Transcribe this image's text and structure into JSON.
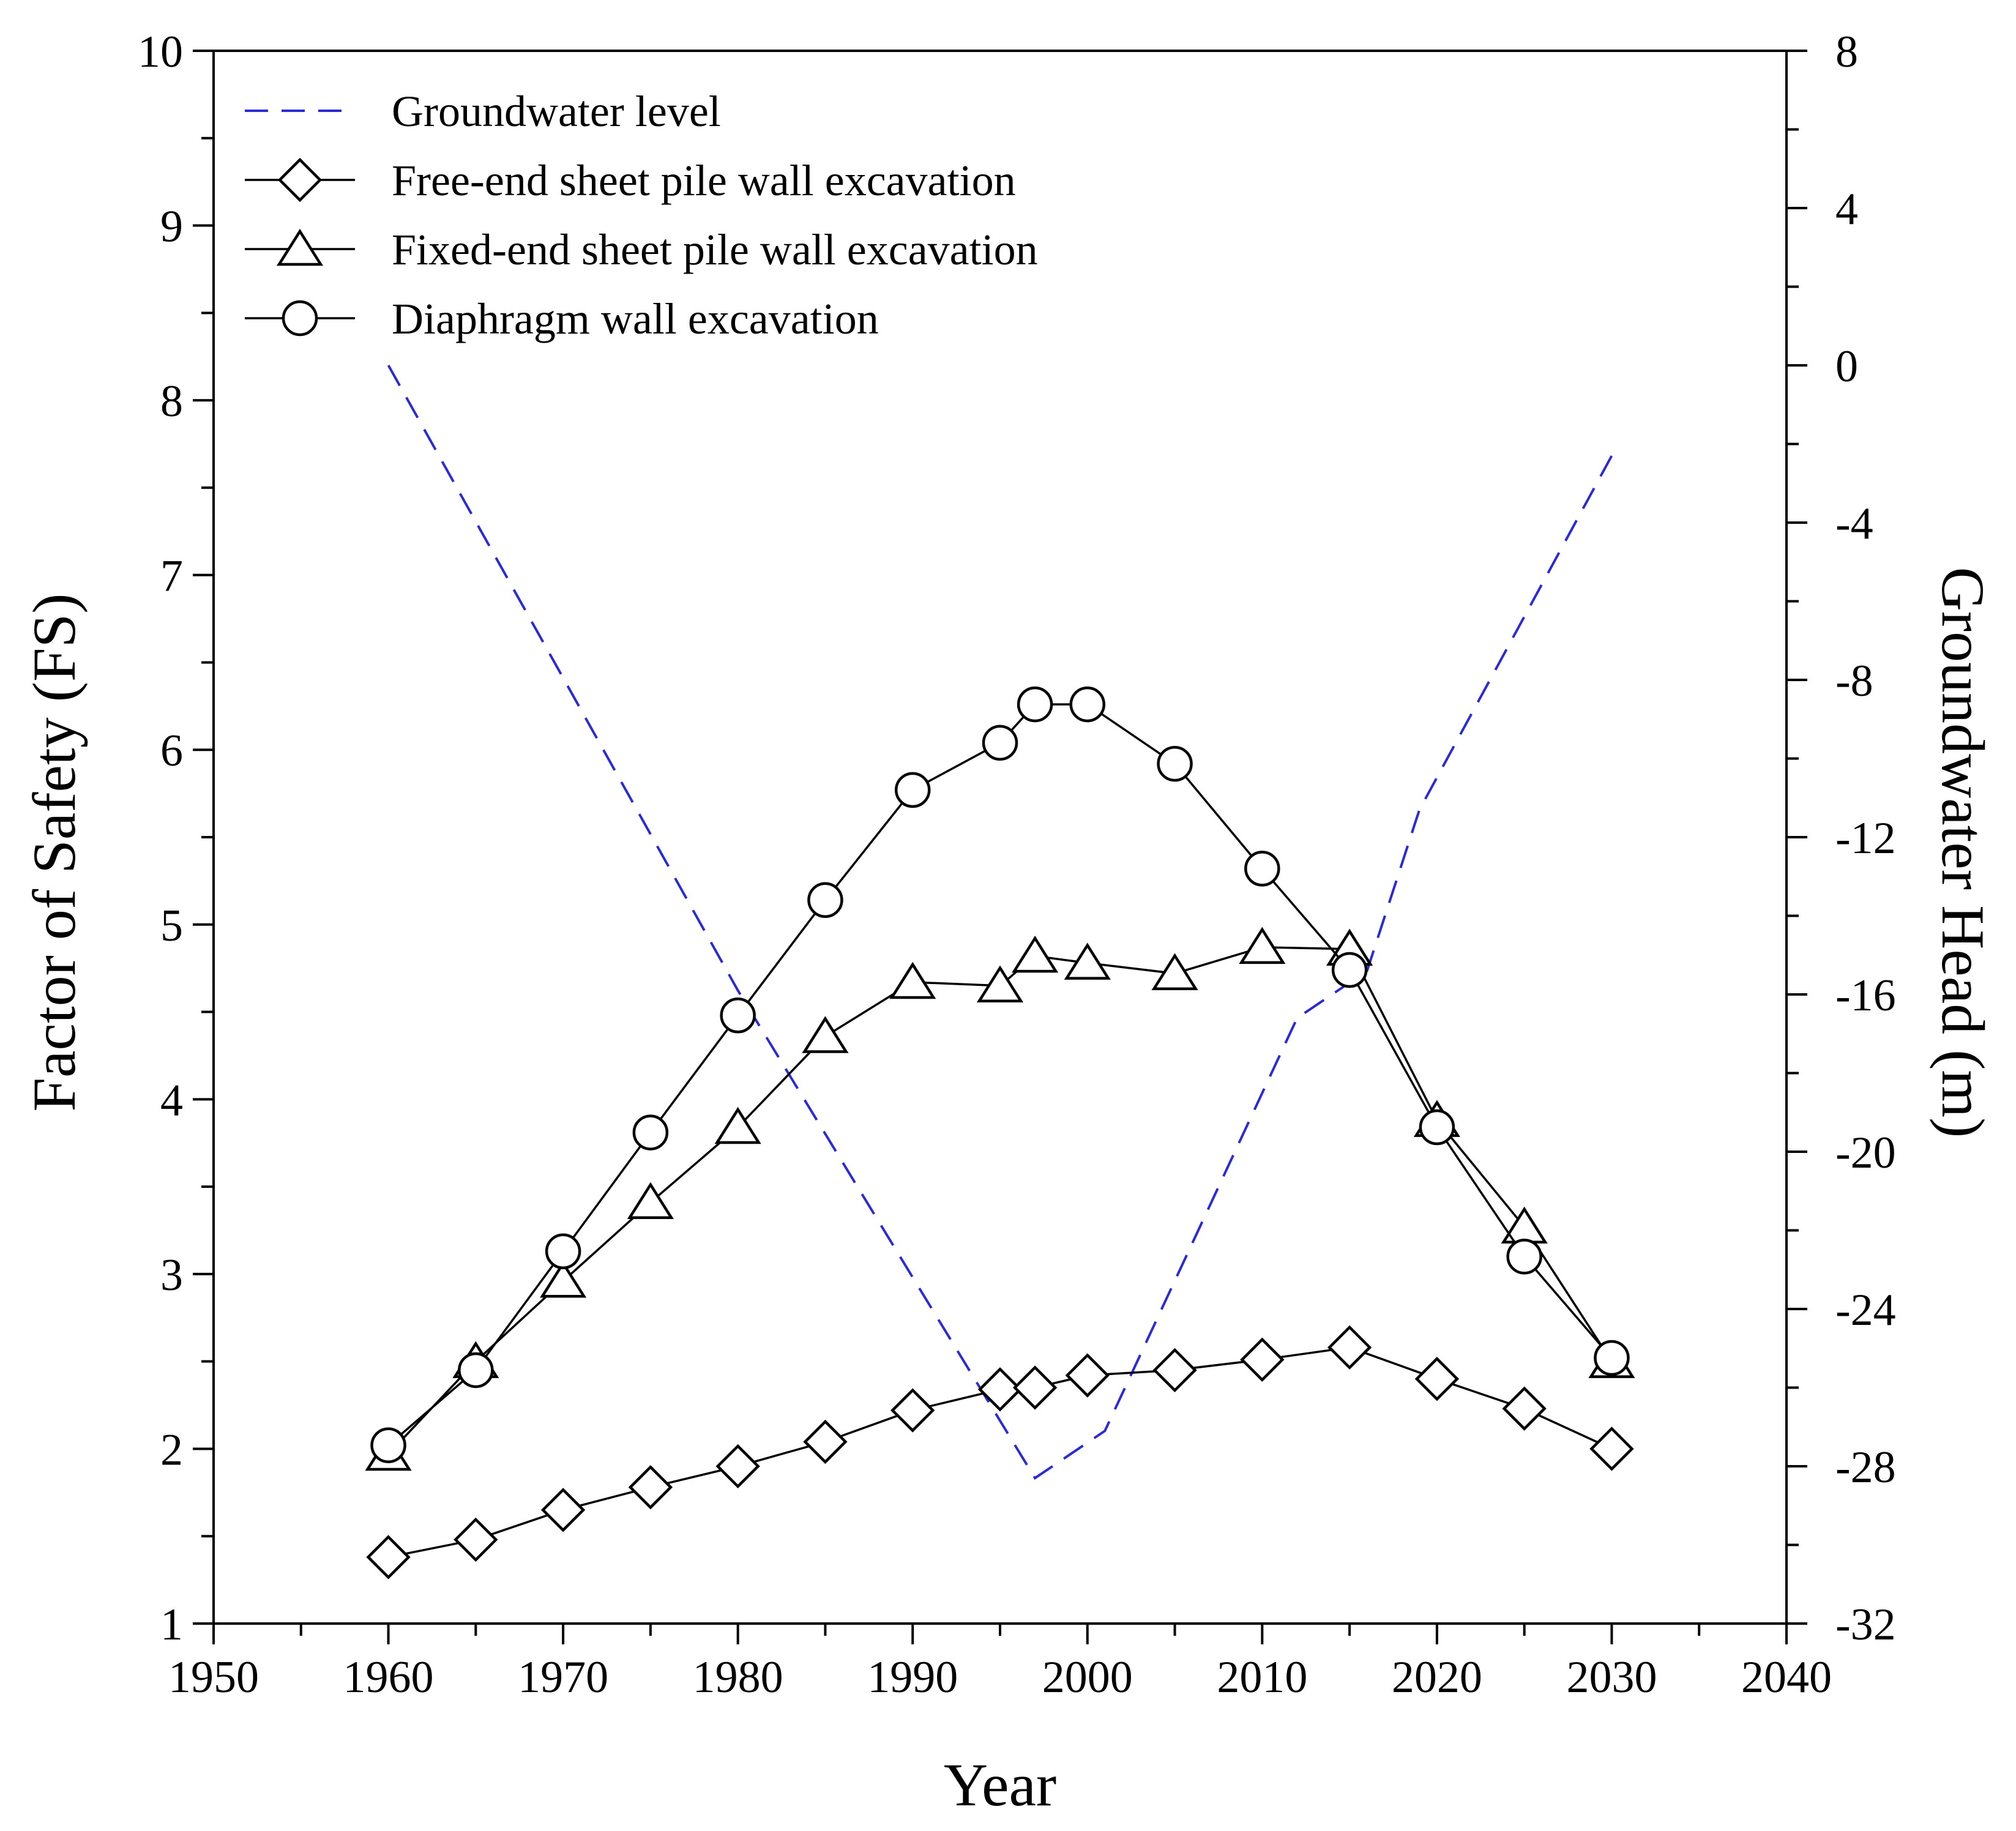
{
  "chart_data": {
    "type": "line",
    "xlabel": "Year",
    "ylabel_left": "Factor of Safety (FS)",
    "ylabel_right": "Groundwater Head (m)",
    "xlim": [
      1950,
      2040
    ],
    "xticks": [
      1950,
      1960,
      1970,
      1980,
      1990,
      2000,
      2010,
      2020,
      2030,
      2040
    ],
    "ylim_left": [
      1,
      10
    ],
    "yticks_left": [
      1,
      2,
      3,
      4,
      5,
      6,
      7,
      8,
      9,
      10
    ],
    "ylim_right": [
      -32,
      8
    ],
    "yticks_right": [
      -32,
      -28,
      -24,
      -20,
      -16,
      -12,
      -8,
      -4,
      0,
      4,
      8
    ],
    "legend_position": "top-left",
    "series": [
      {
        "name": "Groundwater level",
        "axis": "right",
        "style": "dashed",
        "color": "#2a2ad6",
        "marker": "none",
        "x": [
          1960,
          1980,
          1997,
          2001,
          2012,
          2016,
          2019,
          2030
        ],
        "y": [
          0.0,
          -15.9,
          -28.3,
          -27.1,
          -16.6,
          -15.4,
          -11.3,
          -2.3
        ]
      },
      {
        "name": "Free-end sheet pile wall excavation",
        "axis": "left",
        "style": "solid",
        "color": "#000000",
        "marker": "diamond",
        "x": [
          1960,
          1965,
          1970,
          1975,
          1980,
          1985,
          1990,
          1995,
          1997,
          2000,
          2005,
          2010,
          2015,
          2020,
          2025,
          2030
        ],
        "y": [
          1.38,
          1.48,
          1.65,
          1.78,
          1.9,
          2.04,
          2.22,
          2.34,
          2.35,
          2.42,
          2.45,
          2.51,
          2.58,
          2.4,
          2.23,
          2.0
        ]
      },
      {
        "name": "Fixed-end sheet pile wall excavation",
        "axis": "left",
        "style": "solid",
        "color": "#000000",
        "marker": "triangle",
        "x": [
          1960,
          1965,
          1970,
          1975,
          1980,
          1985,
          1990,
          1995,
          1997,
          2000,
          2005,
          2010,
          2015,
          2020,
          2025,
          2030
        ],
        "y": [
          1.97,
          2.5,
          2.96,
          3.41,
          3.84,
          4.36,
          4.67,
          4.65,
          4.82,
          4.78,
          4.72,
          4.87,
          4.86,
          3.88,
          3.27,
          2.5
        ]
      },
      {
        "name": "Diaphragm wall excavation",
        "axis": "left",
        "style": "solid",
        "color": "#000000",
        "marker": "circle",
        "x": [
          1960,
          1965,
          1970,
          1975,
          1980,
          1985,
          1990,
          1995,
          1997,
          2000,
          2005,
          2010,
          2015,
          2020,
          2025,
          2030
        ],
        "y": [
          2.02,
          2.45,
          3.13,
          3.81,
          4.48,
          5.14,
          5.77,
          6.04,
          6.26,
          6.26,
          5.92,
          5.32,
          4.74,
          3.84,
          3.1,
          2.52
        ]
      }
    ]
  }
}
